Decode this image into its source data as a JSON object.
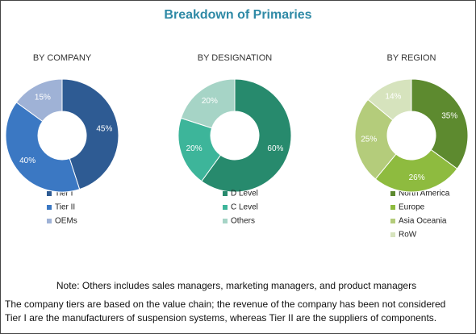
{
  "title": "Breakdown of Primaries",
  "chart_data": [
    {
      "type": "donut",
      "title": "BY COMPANY",
      "categories": [
        "Tier I",
        "Tier II",
        "OEMs"
      ],
      "values": [
        45,
        40,
        15
      ],
      "value_labels": [
        "45%",
        "40%",
        "15%"
      ],
      "colors": [
        "#2e5b93",
        "#3b78c3",
        "#9fb2d6"
      ]
    },
    {
      "type": "donut",
      "title": "BY DESIGNATION",
      "categories": [
        "D Level",
        "C Level",
        "Others"
      ],
      "values": [
        60,
        20,
        20
      ],
      "value_labels": [
        "60%",
        "20%",
        "20%"
      ],
      "colors": [
        "#278a6d",
        "#3db59a",
        "#a6d4c6"
      ]
    },
    {
      "type": "donut",
      "title": "BY REGION",
      "categories": [
        "North America",
        "Europe",
        "Asia Oceania",
        "RoW"
      ],
      "values": [
        35,
        26,
        25,
        14
      ],
      "value_labels": [
        "35%",
        "26%",
        "25%",
        "14%"
      ],
      "colors": [
        "#5d8a2f",
        "#8ebb3f",
        "#b4cc7b",
        "#d6e3bd"
      ]
    }
  ],
  "notes": [
    "Note: Others includes sales managers, marketing managers, and product managers",
    "The company tiers are based on the value chain; the revenue of the company has been not considered",
    "Tier I are the manufacturers of suspension systems, whereas Tier II are the suppliers of components."
  ]
}
